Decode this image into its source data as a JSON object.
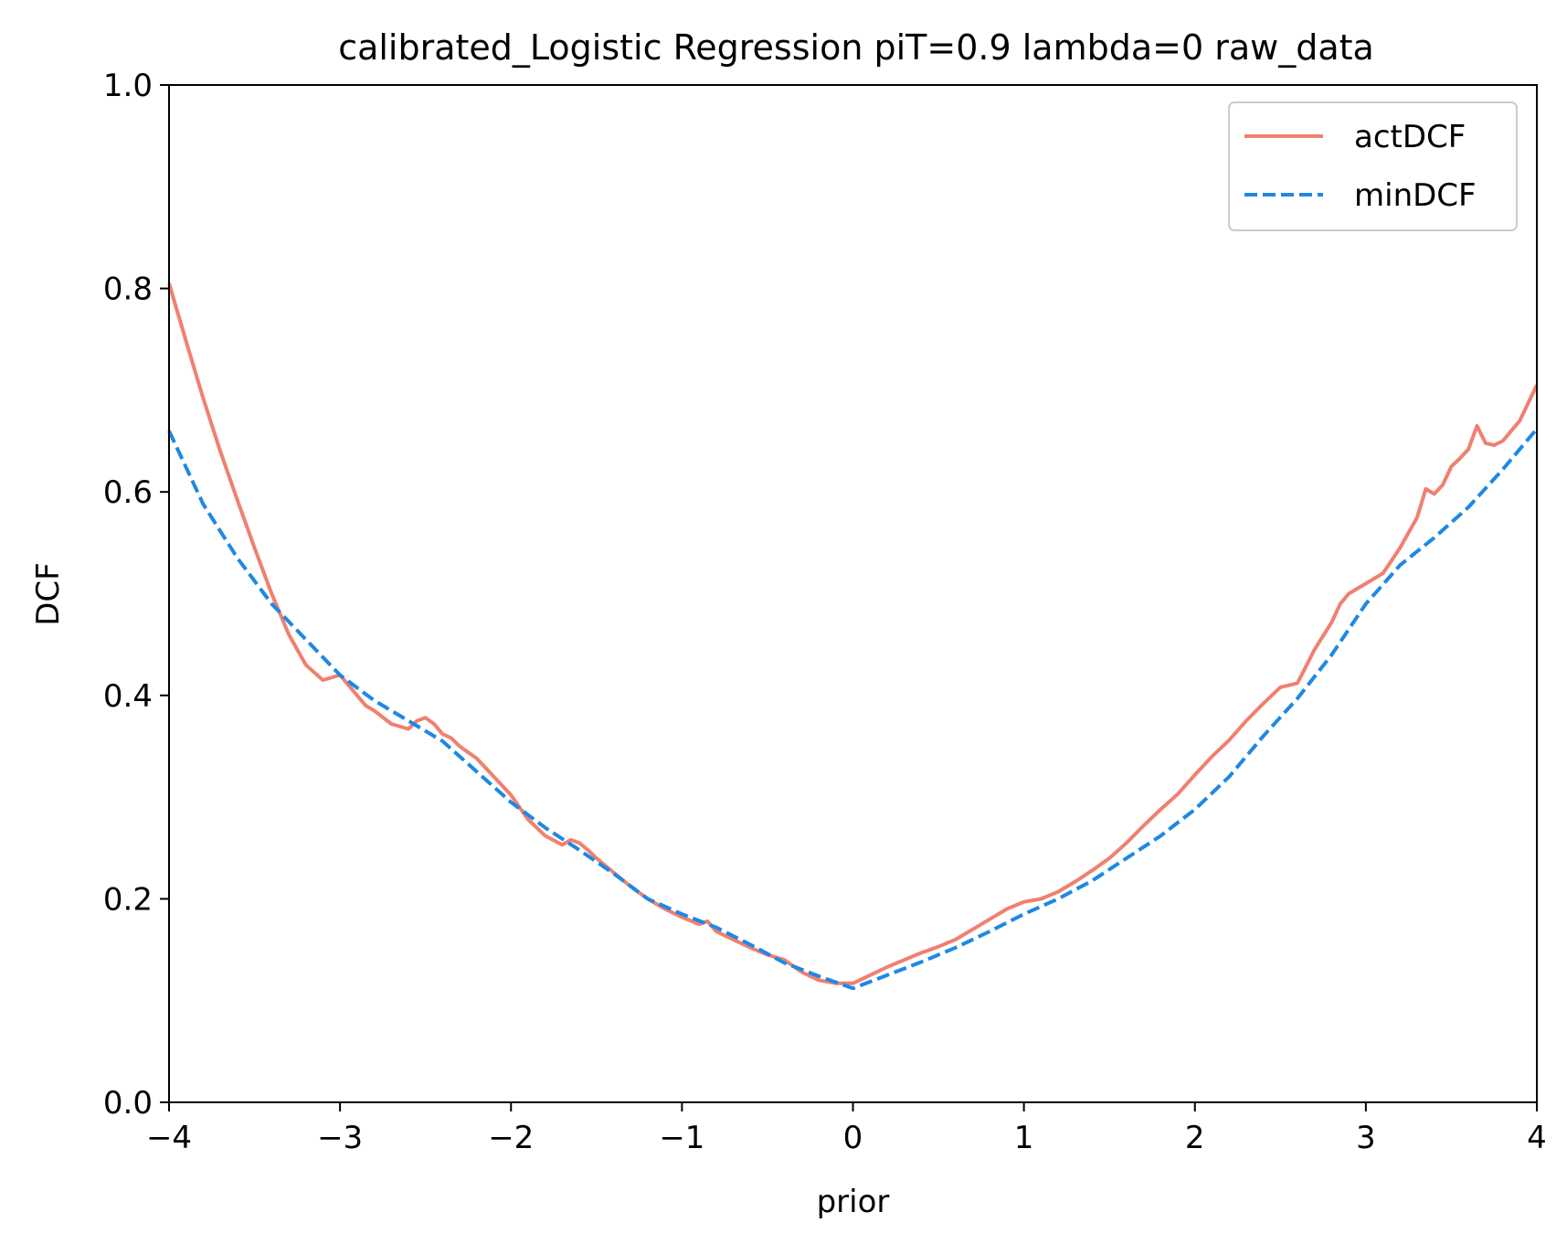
{
  "chart_data": {
    "type": "line",
    "title": "calibrated_Logistic Regression piT=0.9 lambda=0 raw_data",
    "xlabel": "prior",
    "ylabel": "DCF",
    "xlim": [
      -4,
      4
    ],
    "ylim": [
      0.0,
      1.0
    ],
    "xticks": [
      -4,
      -3,
      -2,
      -1,
      0,
      1,
      2,
      3,
      4
    ],
    "xtick_labels": [
      "−4",
      "−3",
      "−2",
      "−1",
      "0",
      "1",
      "2",
      "3",
      "4"
    ],
    "yticks": [
      0.0,
      0.2,
      0.4,
      0.6,
      0.8,
      1.0
    ],
    "ytick_labels": [
      "0.0",
      "0.2",
      "0.4",
      "0.6",
      "0.8",
      "1.0"
    ],
    "grid": false,
    "legend_position": "top-right",
    "series": [
      {
        "name": "actDCF",
        "color": "#f08070",
        "style": "solid",
        "x": [
          -4.0,
          -3.9,
          -3.8,
          -3.7,
          -3.6,
          -3.5,
          -3.4,
          -3.3,
          -3.2,
          -3.1,
          -3.0,
          -2.95,
          -2.9,
          -2.85,
          -2.8,
          -2.7,
          -2.6,
          -2.55,
          -2.5,
          -2.45,
          -2.4,
          -2.35,
          -2.3,
          -2.2,
          -2.1,
          -2.0,
          -1.9,
          -1.8,
          -1.7,
          -1.65,
          -1.6,
          -1.55,
          -1.5,
          -1.4,
          -1.3,
          -1.2,
          -1.1,
          -1.0,
          -0.9,
          -0.85,
          -0.8,
          -0.7,
          -0.6,
          -0.5,
          -0.4,
          -0.3,
          -0.2,
          -0.1,
          0.0,
          0.1,
          0.2,
          0.3,
          0.4,
          0.5,
          0.6,
          0.7,
          0.8,
          0.9,
          1.0,
          1.1,
          1.2,
          1.3,
          1.4,
          1.5,
          1.6,
          1.7,
          1.8,
          1.9,
          2.0,
          2.1,
          2.2,
          2.3,
          2.4,
          2.5,
          2.55,
          2.6,
          2.7,
          2.8,
          2.85,
          2.9,
          3.0,
          3.1,
          3.2,
          3.3,
          3.35,
          3.4,
          3.45,
          3.5,
          3.55,
          3.6,
          3.65,
          3.7,
          3.75,
          3.8,
          3.9,
          4.0
        ],
        "values": [
          0.805,
          0.748,
          0.692,
          0.64,
          0.592,
          0.545,
          0.5,
          0.46,
          0.43,
          0.415,
          0.42,
          0.41,
          0.4,
          0.39,
          0.385,
          0.372,
          0.367,
          0.375,
          0.378,
          0.372,
          0.362,
          0.358,
          0.35,
          0.338,
          0.32,
          0.302,
          0.278,
          0.262,
          0.253,
          0.258,
          0.255,
          0.248,
          0.24,
          0.226,
          0.212,
          0.2,
          0.19,
          0.182,
          0.175,
          0.178,
          0.168,
          0.16,
          0.152,
          0.145,
          0.14,
          0.128,
          0.12,
          0.117,
          0.117,
          0.125,
          0.133,
          0.14,
          0.147,
          0.153,
          0.16,
          0.17,
          0.18,
          0.19,
          0.197,
          0.2,
          0.207,
          0.217,
          0.228,
          0.24,
          0.255,
          0.272,
          0.288,
          0.303,
          0.322,
          0.34,
          0.356,
          0.375,
          0.392,
          0.408,
          0.41,
          0.412,
          0.445,
          0.472,
          0.49,
          0.5,
          0.51,
          0.52,
          0.545,
          0.575,
          0.603,
          0.598,
          0.607,
          0.625,
          0.633,
          0.642,
          0.665,
          0.648,
          0.646,
          0.65,
          0.67,
          0.705
        ]
      },
      {
        "name": "minDCF",
        "color": "#1e88e5",
        "style": "dashed",
        "x": [
          -4.0,
          -3.8,
          -3.6,
          -3.4,
          -3.2,
          -3.0,
          -2.8,
          -2.6,
          -2.4,
          -2.2,
          -2.0,
          -1.8,
          -1.6,
          -1.4,
          -1.2,
          -1.0,
          -0.8,
          -0.6,
          -0.4,
          -0.2,
          0.0,
          0.2,
          0.4,
          0.6,
          0.8,
          1.0,
          1.2,
          1.4,
          1.6,
          1.8,
          2.0,
          2.2,
          2.4,
          2.6,
          2.8,
          3.0,
          3.2,
          3.4,
          3.6,
          3.8,
          4.0
        ],
        "values": [
          0.66,
          0.588,
          0.535,
          0.49,
          0.455,
          0.42,
          0.395,
          0.375,
          0.355,
          0.325,
          0.295,
          0.27,
          0.248,
          0.225,
          0.2,
          0.185,
          0.172,
          0.155,
          0.137,
          0.124,
          0.112,
          0.125,
          0.138,
          0.152,
          0.168,
          0.185,
          0.2,
          0.218,
          0.24,
          0.262,
          0.288,
          0.32,
          0.36,
          0.397,
          0.44,
          0.49,
          0.528,
          0.555,
          0.585,
          0.622,
          0.662
        ]
      }
    ]
  }
}
